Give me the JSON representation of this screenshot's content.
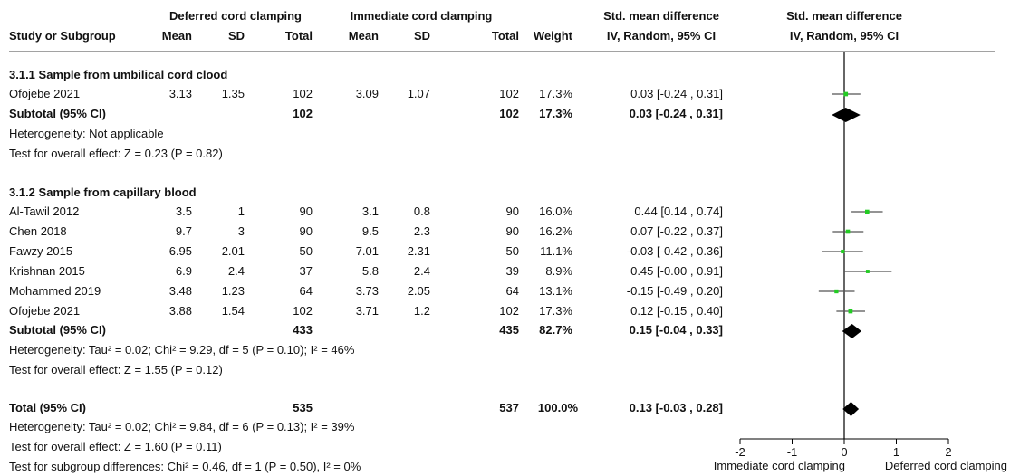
{
  "header": {
    "group_deferred": "Deferred cord clamping",
    "group_immediate": "Immediate cord clamping",
    "col_study": "Study or Subgroup",
    "col_mean": "Mean",
    "col_sd": "SD",
    "col_total": "Total",
    "col_weight": "Weight",
    "smd_title": "Std. mean difference",
    "smd_method": "IV, Random, 95% CI",
    "plot_title": "Std. mean difference",
    "plot_method": "IV, Random, 95% CI"
  },
  "groups": [
    {
      "heading": "3.1.1 Sample from umbilical cord clood",
      "studies": [
        {
          "name": "Ofojebe 2021",
          "d_mean": "3.13",
          "d_sd": "1.35",
          "d_total": "102",
          "i_mean": "3.09",
          "i_sd": "1.07",
          "i_total": "102",
          "weight": "17.3%",
          "ci": "0.03 [-0.24 , 0.31]"
        }
      ],
      "subtotal": {
        "label": "Subtotal (95% CI)",
        "d_total": "102",
        "i_total": "102",
        "weight": "17.3%",
        "ci": "0.03 [-0.24 , 0.31]"
      },
      "heterogeneity": "Heterogeneity: Not applicable",
      "overall": "Test for overall effect: Z = 0.23 (P = 0.82)"
    },
    {
      "heading": "3.1.2 Sample from capillary blood",
      "studies": [
        {
          "name": "Al-Tawil 2012",
          "d_mean": "3.5",
          "d_sd": "1",
          "d_total": "90",
          "i_mean": "3.1",
          "i_sd": "0.8",
          "i_total": "90",
          "weight": "16.0%",
          "ci": "0.44 [0.14 , 0.74]"
        },
        {
          "name": "Chen 2018",
          "d_mean": "9.7",
          "d_sd": "3",
          "d_total": "90",
          "i_mean": "9.5",
          "i_sd": "2.3",
          "i_total": "90",
          "weight": "16.2%",
          "ci": "0.07 [-0.22 , 0.37]"
        },
        {
          "name": "Fawzy 2015",
          "d_mean": "6.95",
          "d_sd": "2.01",
          "d_total": "50",
          "i_mean": "7.01",
          "i_sd": "2.31",
          "i_total": "50",
          "weight": "11.1%",
          "ci": "-0.03 [-0.42 , 0.36]"
        },
        {
          "name": "Krishnan 2015",
          "d_mean": "6.9",
          "d_sd": "2.4",
          "d_total": "37",
          "i_mean": "5.8",
          "i_sd": "2.4",
          "i_total": "39",
          "weight": "8.9%",
          "ci": "0.45 [-0.00 , 0.91]"
        },
        {
          "name": "Mohammed 2019",
          "d_mean": "3.48",
          "d_sd": "1.23",
          "d_total": "64",
          "i_mean": "3.73",
          "i_sd": "2.05",
          "i_total": "64",
          "weight": "13.1%",
          "ci": "-0.15 [-0.49 , 0.20]"
        },
        {
          "name": "Ofojebe 2021",
          "d_mean": "3.88",
          "d_sd": "1.54",
          "d_total": "102",
          "i_mean": "3.71",
          "i_sd": "1.2",
          "i_total": "102",
          "weight": "17.3%",
          "ci": "0.12 [-0.15 , 0.40]"
        }
      ],
      "subtotal": {
        "label": "Subtotal (95% CI)",
        "d_total": "433",
        "i_total": "435",
        "weight": "82.7%",
        "ci": "0.15 [-0.04 , 0.33]"
      },
      "heterogeneity": "Heterogeneity: Tau² = 0.02; Chi² = 9.29, df = 5 (P = 0.10); I² = 46%",
      "overall": "Test for overall effect: Z = 1.55 (P = 0.12)"
    }
  ],
  "total": {
    "label": "Total (95% CI)",
    "d_total": "535",
    "i_total": "537",
    "weight": "100.0%",
    "ci": "0.13 [-0.03 , 0.28]",
    "heterogeneity": "Heterogeneity: Tau² = 0.02; Chi² = 9.84, df = 6 (P = 0.13); I² = 39%",
    "overall": "Test for overall effect: Z = 1.60 (P = 0.11)",
    "subgroup_diff": "Test for subgroup differences: Chi² = 0.46, df = 1 (P = 0.50), I² = 0%"
  },
  "chart_data": {
    "type": "forest",
    "xlim": [
      -2,
      2
    ],
    "ticks": [
      -2,
      -1,
      0,
      1,
      2
    ],
    "tick_labels": [
      "-2",
      "-1",
      "0",
      "1",
      "2"
    ],
    "left_label": "Immediate cord clamping",
    "right_label": "Deferred cord clamping",
    "marker_color": "#22cc22",
    "line_color": "#555555",
    "studies": [
      {
        "name": "Ofojebe 2021",
        "est": 0.03,
        "lo": -0.24,
        "hi": 0.31,
        "weight": 17.3
      },
      {
        "name": "Al-Tawil 2012",
        "est": 0.44,
        "lo": 0.14,
        "hi": 0.74,
        "weight": 16.0
      },
      {
        "name": "Chen 2018",
        "est": 0.07,
        "lo": -0.22,
        "hi": 0.37,
        "weight": 16.2
      },
      {
        "name": "Fawzy 2015",
        "est": -0.03,
        "lo": -0.42,
        "hi": 0.36,
        "weight": 11.1
      },
      {
        "name": "Krishnan 2015",
        "est": 0.45,
        "lo": -0.0,
        "hi": 0.91,
        "weight": 8.9
      },
      {
        "name": "Mohammed 2019",
        "est": -0.15,
        "lo": -0.49,
        "hi": 0.2,
        "weight": 13.1
      },
      {
        "name": "Ofojebe 2021",
        "est": 0.12,
        "lo": -0.15,
        "hi": 0.4,
        "weight": 17.3
      }
    ],
    "diamonds": [
      {
        "name": "Subtotal 3.1.1",
        "est": 0.03,
        "lo": -0.24,
        "hi": 0.31
      },
      {
        "name": "Subtotal 3.1.2",
        "est": 0.15,
        "lo": -0.04,
        "hi": 0.33
      },
      {
        "name": "Total",
        "est": 0.13,
        "lo": -0.03,
        "hi": 0.28
      }
    ]
  }
}
